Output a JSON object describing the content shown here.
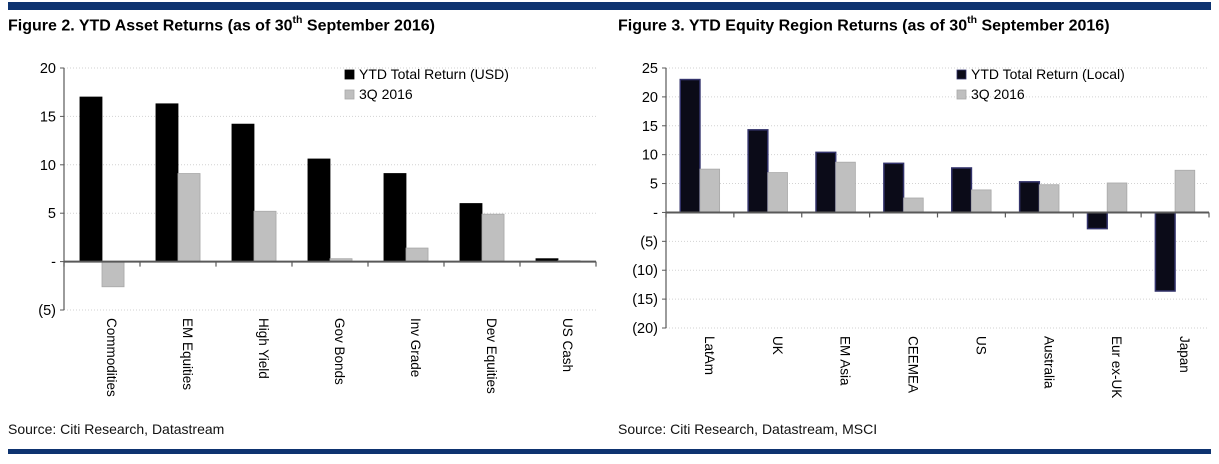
{
  "page": {
    "accent_color": "#0e3370",
    "background": "#ffffff",
    "grid_color": "#d2d2d2",
    "axis_color": "#595959"
  },
  "chart_data": [
    {
      "type": "bar",
      "title": "Figure 2. YTD Asset Returns (as of 30th September 2016)",
      "title_parts": {
        "prefix": "Figure 2. YTD Asset Returns (as of 30",
        "superscript": "th",
        "suffix": " September 2016)"
      },
      "categories": [
        "Commodities",
        "EM Equities",
        "High Yield",
        "Gov Bonds",
        "Inv Grade",
        "Dev Equities",
        "US Cash"
      ],
      "series": [
        {
          "name": "YTD Total Return (USD)",
          "color": "#000000",
          "border_color": "#000000",
          "values": [
            17.0,
            16.3,
            14.2,
            10.6,
            9.1,
            6.0,
            0.3
          ]
        },
        {
          "name": "3Q 2016",
          "color": "#bfbfbf",
          "border_color": "#a8a8a8",
          "values": [
            -2.6,
            9.1,
            5.2,
            0.3,
            1.4,
            4.9,
            0.1
          ]
        }
      ],
      "ylim": [
        -5,
        20
      ],
      "ytick_step": 5,
      "yticks": [
        {
          "value": 20,
          "label": "20"
        },
        {
          "value": 15,
          "label": "15"
        },
        {
          "value": 10,
          "label": "10"
        },
        {
          "value": 5,
          "label": "5"
        },
        {
          "value": 0,
          "label": "-"
        },
        {
          "value": -5,
          "label": "(5)"
        }
      ],
      "grid": true,
      "legend_position": "top-center-right-inset",
      "source": "Source: Citi Research, Datastream"
    },
    {
      "type": "bar",
      "title": "Figure 3. YTD Equity Region Returns (as of 30th September 2016)",
      "title_parts": {
        "prefix": "Figure 3. YTD Equity Region Returns (as of 30",
        "superscript": "th",
        "suffix": " September 2016)"
      },
      "categories": [
        "LatAm",
        "UK",
        "EM Asia",
        "CEEMEA",
        "US",
        "Australia",
        "Eur ex-UK",
        "Japan"
      ],
      "series": [
        {
          "name": "YTD Total Return (Local)",
          "color": "#0b0b18",
          "border_color": "#33336b",
          "values": [
            23.0,
            14.3,
            10.4,
            8.5,
            7.7,
            5.3,
            -2.8,
            -13.6
          ]
        },
        {
          "name": "3Q 2016",
          "color": "#bfbfbf",
          "border_color": "#a8a8a8",
          "values": [
            7.5,
            6.9,
            8.7,
            2.5,
            3.9,
            4.8,
            5.1,
            7.3
          ]
        }
      ],
      "ylim": [
        -20,
        25
      ],
      "ytick_step": 5,
      "yticks": [
        {
          "value": 25,
          "label": "25"
        },
        {
          "value": 20,
          "label": "20"
        },
        {
          "value": 15,
          "label": "15"
        },
        {
          "value": 10,
          "label": "10"
        },
        {
          "value": 5,
          "label": "5"
        },
        {
          "value": 0,
          "label": "-"
        },
        {
          "value": -5,
          "label": "(5)"
        },
        {
          "value": -10,
          "label": "(10)"
        },
        {
          "value": -15,
          "label": "(15)"
        },
        {
          "value": -20,
          "label": "(20)"
        }
      ],
      "grid": true,
      "legend_position": "top-center-right-inset",
      "source": "Source: Citi Research, Datastream, MSCI"
    }
  ]
}
